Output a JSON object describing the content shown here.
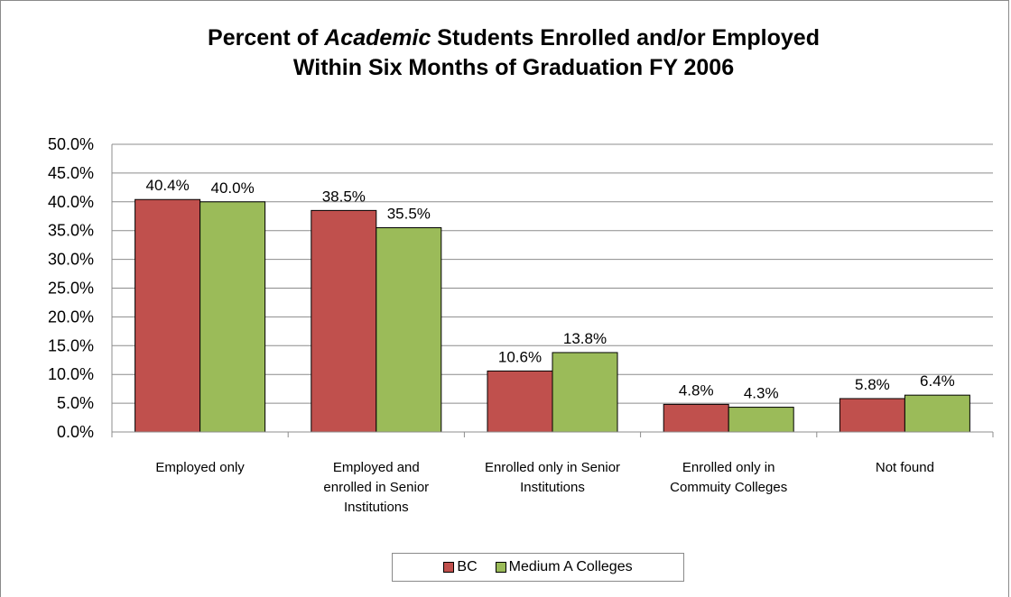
{
  "chart_data": {
    "type": "bar",
    "title_parts": [
      "Percent of ",
      "Academic",
      " Students Enrolled and/or Employed"
    ],
    "title_line2": "Within Six Months of Graduation FY 2006",
    "categories": [
      "Employed only",
      "Employed and enrolled in Senior Institutions",
      "Enrolled only in Senior Institutions",
      "Enrolled only in Commuity Colleges",
      "Not found"
    ],
    "category_lines": [
      [
        "Employed only"
      ],
      [
        "Employed and",
        "enrolled in Senior",
        "Institutions"
      ],
      [
        "Enrolled only in Senior",
        "Institutions"
      ],
      [
        "Enrolled only in",
        "Commuity Colleges"
      ],
      [
        "Not found"
      ]
    ],
    "series": [
      {
        "name": "BC",
        "color": "#c0504d",
        "values": [
          40.4,
          38.5,
          10.6,
          4.8,
          5.8
        ],
        "labels": [
          "40.4%",
          "38.5%",
          "10.6%",
          "4.8%",
          "5.8%"
        ]
      },
      {
        "name": "Medium A Colleges",
        "color": "#9bbb59",
        "values": [
          40.0,
          35.5,
          13.8,
          4.3,
          6.4
        ],
        "labels": [
          "40.0%",
          "35.5%",
          "13.8%",
          "4.3%",
          "6.4%"
        ]
      }
    ],
    "ylim": [
      0,
      50
    ],
    "yticks": [
      "0.0%",
      "5.0%",
      "10.0%",
      "15.0%",
      "20.0%",
      "25.0%",
      "30.0%",
      "35.0%",
      "40.0%",
      "45.0%",
      "50.0%"
    ],
    "grid": true,
    "legend": "bottom"
  }
}
